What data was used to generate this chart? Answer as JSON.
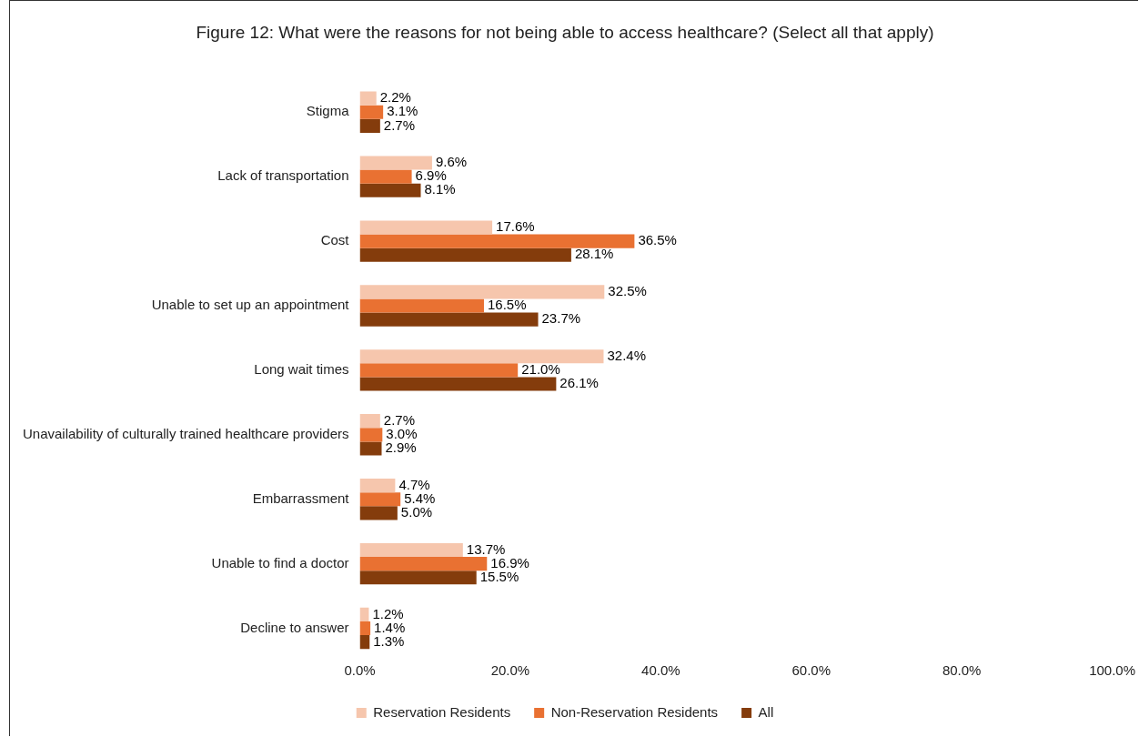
{
  "chart_data": {
    "type": "bar",
    "orientation": "horizontal",
    "title": "Figure 12: What were the reasons for not being able to access healthcare? (Select all that apply)",
    "categories": [
      "Stigma",
      "Lack of transportation",
      "Cost",
      "Unable to set up an appointment",
      "Long wait times",
      "Unavailability of culturally trained healthcare providers",
      "Embarrassment",
      "Unable to find a doctor",
      "Decline to answer"
    ],
    "series": [
      {
        "name": "Reservation Residents",
        "color": "#f6c6ad",
        "values": [
          2.2,
          9.6,
          17.6,
          32.5,
          32.4,
          2.7,
          4.7,
          13.7,
          1.2
        ],
        "value_labels": [
          "2.2%",
          "9.6%",
          "17.6%",
          "32.5%",
          "32.4%",
          "2.7%",
          "4.7%",
          "13.7%",
          "1.2%"
        ]
      },
      {
        "name": "Non-Reservation Residents",
        "color": "#e97132",
        "values": [
          3.1,
          6.9,
          36.5,
          16.5,
          21.0,
          3.0,
          5.4,
          16.9,
          1.4
        ],
        "value_labels": [
          "3.1%",
          "6.9%",
          "36.5%",
          "16.5%",
          "21.0%",
          "3.0%",
          "5.4%",
          "16.9%",
          "1.4%"
        ]
      },
      {
        "name": "All",
        "color": "#843c0c",
        "values": [
          2.7,
          8.1,
          28.1,
          23.7,
          26.1,
          2.9,
          5.0,
          15.5,
          1.3
        ],
        "value_labels": [
          "2.7%",
          "8.1%",
          "28.1%",
          "23.7%",
          "26.1%",
          "2.9%",
          "5.0%",
          "15.5%",
          "1.3%"
        ]
      }
    ],
    "xlim": [
      0,
      100
    ],
    "xticks": [
      {
        "value": 0,
        "label": "0.0%"
      },
      {
        "value": 20,
        "label": "20.0%"
      },
      {
        "value": 40,
        "label": "40.0%"
      },
      {
        "value": 60,
        "label": "60.0%"
      },
      {
        "value": 80,
        "label": "80.0%"
      },
      {
        "value": 100,
        "label": "100.0%"
      }
    ],
    "grid": false,
    "legend": "bottom"
  }
}
